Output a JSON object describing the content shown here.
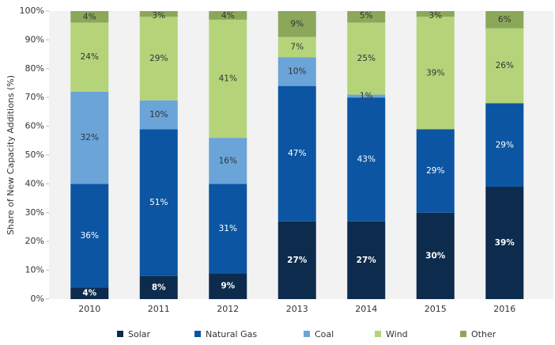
{
  "chart_data": {
    "type": "stacked_bar",
    "y_label": "Share of New Capacity Additions (%)",
    "categories": [
      "2010",
      "2011",
      "2012",
      "2013",
      "2014",
      "2015",
      "2016"
    ],
    "series": [
      {
        "name": "Solar",
        "color": "#0d2b4c",
        "values": [
          4,
          8,
          9,
          27,
          27,
          30,
          39
        ],
        "value_labels": [
          "4%",
          "8%",
          "9%",
          "27%",
          "27%",
          "30%",
          "39%"
        ]
      },
      {
        "name": "Natural Gas",
        "color": "#0b55a2",
        "values": [
          36,
          51,
          31,
          47,
          43,
          29,
          29
        ],
        "value_labels": [
          "36%",
          "51%",
          "31%",
          "47%",
          "43%",
          "29%",
          "29%"
        ]
      },
      {
        "name": "Coal",
        "color": "#6aa4d8",
        "values": [
          32,
          10,
          16,
          10,
          1,
          null,
          null
        ],
        "value_labels": [
          "32%",
          "10%",
          "16%",
          "10%",
          "1%",
          null,
          null
        ]
      },
      {
        "name": "Wind",
        "color": "#b5d47a",
        "values": [
          24,
          29,
          41,
          7,
          25,
          39,
          26
        ],
        "value_labels": [
          "24%",
          "29%",
          "41%",
          "7%",
          "25%",
          "39%",
          "26%"
        ]
      },
      {
        "name": "Other",
        "color": "#8ba85a",
        "values": [
          4,
          3,
          4,
          9,
          5,
          3,
          6
        ],
        "value_labels": [
          "4%",
          "3%",
          "4%",
          "9%",
          "5%",
          "3%",
          "6%"
        ]
      }
    ],
    "ylim": [
      0,
      100
    ],
    "yticks": [
      {
        "value": 0,
        "label": "0%"
      },
      {
        "value": 10,
        "label": "10%"
      },
      {
        "value": 20,
        "label": "20%"
      },
      {
        "value": 30,
        "label": "30%"
      },
      {
        "value": 40,
        "label": "40%"
      },
      {
        "value": 50,
        "label": "50%"
      },
      {
        "value": 60,
        "label": "60%"
      },
      {
        "value": 70,
        "label": "70%"
      },
      {
        "value": 80,
        "label": "80%"
      },
      {
        "value": 90,
        "label": "90%"
      },
      {
        "value": 100,
        "label": "100%"
      }
    ],
    "legend": "bottom"
  }
}
